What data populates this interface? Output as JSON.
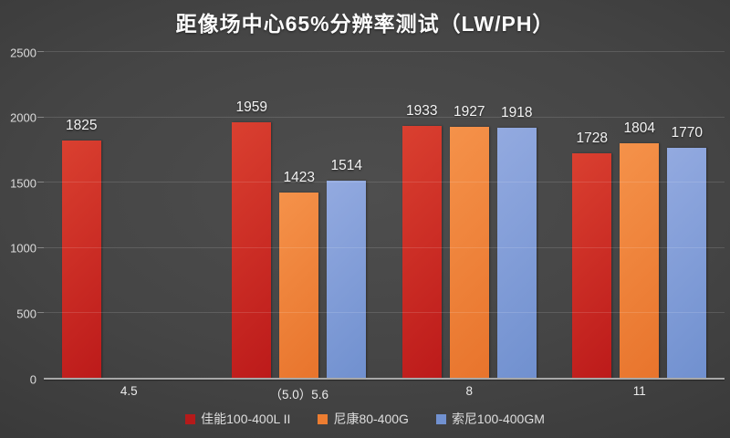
{
  "title": "距像场中心65%分辨率测试（LW/PH）",
  "chart_data": {
    "type": "bar",
    "title": "距像场中心65%分辨率测试（LW/PH）",
    "categories": [
      "4.5",
      "（5.0）5.6",
      "8",
      "11"
    ],
    "series": [
      {
        "name": "佳能100-400L II",
        "legend_color": "#b51a1a",
        "bar_top": "#da4030",
        "bar_bottom": "#bc1a1a",
        "values": [
          1825,
          1959,
          1933,
          1728
        ]
      },
      {
        "name": "尼康80-400G",
        "legend_color": "#ed7d31",
        "bar_top": "#f5924a",
        "bar_bottom": "#e8742c",
        "values": [
          null,
          1423,
          1927,
          1804
        ]
      },
      {
        "name": "索尼100-400GM",
        "legend_color": "#7191d0",
        "bar_top": "#93aae0",
        "bar_bottom": "#7090cf",
        "values": [
          null,
          1514,
          1918,
          1770
        ]
      }
    ],
    "ylabel": "",
    "xlabel": "",
    "ylim": [
      0,
      2500
    ],
    "yticks": [
      0,
      500,
      1000,
      1500,
      2000,
      2500
    ],
    "grid": true,
    "legend_position": "bottom",
    "background": "#424242"
  }
}
